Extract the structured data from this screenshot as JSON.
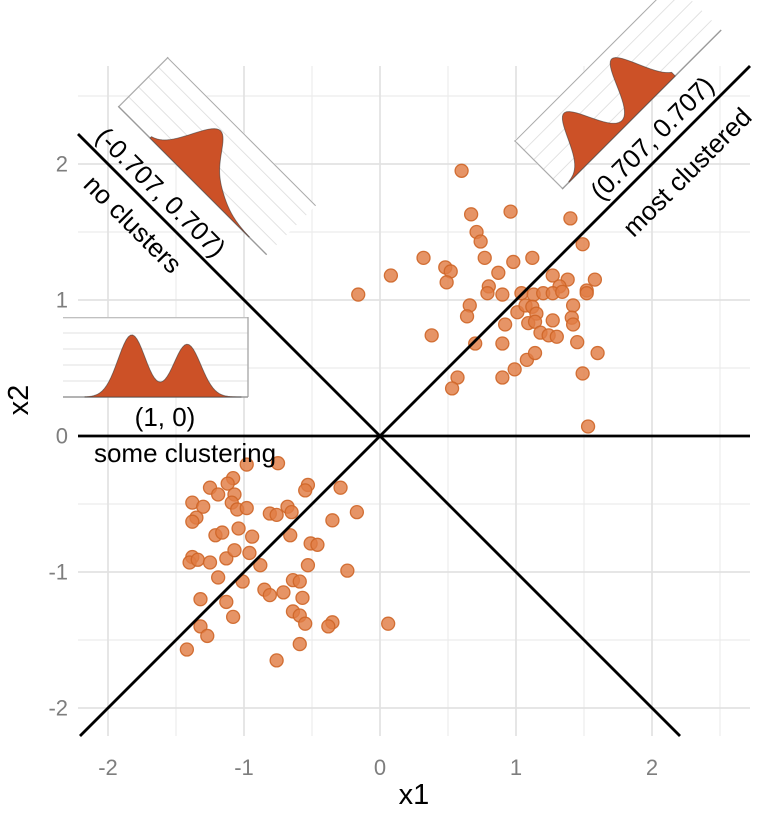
{
  "axes": {
    "x_label": "x1",
    "y_label": "x2"
  },
  "annotations": {
    "tl_coef": "(-0.707, 0.707)",
    "tl_desc": "no clusters",
    "tr_coef": "(0.707, 0.707)",
    "tr_desc": "most clustered",
    "ml_coef": "(1, 0)",
    "ml_desc": "some clustering"
  },
  "colors": {
    "point_fill": "#E07C44",
    "point_edge": "#CE6527",
    "density_fill": "#CC5127",
    "density_edge": "#3A3A3A",
    "ref_line": "#000000",
    "grid_major": "#E2E2E2",
    "grid_minor": "#ECECEC",
    "tick_text": "#7E7E7E",
    "inset_grid": "#E0E0E0",
    "inset_edge": "#ABABAB",
    "inset_baseline": "#9A9A9A"
  },
  "chart_data": {
    "type": "scatter",
    "xlabel": "x1",
    "ylabel": "x2",
    "x_ticks": [
      -2,
      -1,
      0,
      1,
      2
    ],
    "y_ticks": [
      -2,
      -1,
      0,
      1,
      2
    ],
    "minor_ticks": [
      -1.5,
      -0.5,
      0.5,
      1.5,
      2.5
    ],
    "xlim": [
      -2.22,
      2.72
    ],
    "ylim": [
      -2.21,
      2.72
    ],
    "grid": true,
    "reference_lines": [
      {
        "slope": 1,
        "intercept": 0
      },
      {
        "slope": -1,
        "intercept": 0
      },
      {
        "slope": 0,
        "intercept": 0
      }
    ],
    "series": [
      {
        "name": "cluster-upper-right",
        "values": [
          [
            0.6,
            1.95
          ],
          [
            0.67,
            1.63
          ],
          [
            0.96,
            1.65
          ],
          [
            0.71,
            1.5
          ],
          [
            0.74,
            1.43
          ],
          [
            1.4,
            1.6
          ],
          [
            1.49,
            1.41
          ],
          [
            0.32,
            1.31
          ],
          [
            0.08,
            1.18
          ],
          [
            -0.16,
            1.04
          ],
          [
            0.48,
            1.24
          ],
          [
            0.52,
            1.21
          ],
          [
            0.49,
            1.13
          ],
          [
            0.77,
            1.31
          ],
          [
            0.98,
            1.28
          ],
          [
            0.87,
            1.2
          ],
          [
            1.12,
            1.31
          ],
          [
            1.27,
            1.18
          ],
          [
            1.38,
            1.15
          ],
          [
            1.58,
            1.15
          ],
          [
            1.52,
            1.07
          ],
          [
            1.32,
            1.1
          ],
          [
            0.8,
            1.1
          ],
          [
            0.79,
            1.05
          ],
          [
            0.9,
            1.04
          ],
          [
            1.04,
            1.05
          ],
          [
            1.13,
            1.04
          ],
          [
            1.2,
            1.05
          ],
          [
            1.27,
            1.05
          ],
          [
            1.34,
            1.06
          ],
          [
            1.52,
            1.05
          ],
          [
            0.66,
            0.96
          ],
          [
            1.01,
            0.91
          ],
          [
            1.07,
            0.96
          ],
          [
            1.12,
            0.95
          ],
          [
            1.15,
            0.9
          ],
          [
            1.42,
            0.96
          ],
          [
            0.64,
            0.88
          ],
          [
            1.27,
            0.85
          ],
          [
            1.41,
            0.87
          ],
          [
            1.42,
            0.82
          ],
          [
            0.38,
            0.74
          ],
          [
            0.7,
            0.68
          ],
          [
            0.92,
            0.82
          ],
          [
            1.09,
            0.83
          ],
          [
            1.14,
            0.84
          ],
          [
            1.18,
            0.76
          ],
          [
            1.24,
            0.74
          ],
          [
            1.3,
            0.73
          ],
          [
            1.45,
            0.69
          ],
          [
            0.9,
            0.68
          ],
          [
            1.6,
            0.61
          ],
          [
            1.08,
            0.56
          ],
          [
            1.14,
            0.61
          ],
          [
            0.99,
            0.49
          ],
          [
            0.9,
            0.43
          ],
          [
            0.57,
            0.43
          ],
          [
            0.53,
            0.35
          ],
          [
            1.49,
            0.46
          ],
          [
            1.53,
            0.07
          ]
        ]
      },
      {
        "name": "cluster-lower-left",
        "values": [
          [
            -0.98,
            -0.21
          ],
          [
            -0.75,
            -0.2
          ],
          [
            -1.08,
            -0.31
          ],
          [
            -1.12,
            -0.35
          ],
          [
            -1.25,
            -0.38
          ],
          [
            -1.19,
            -0.43
          ],
          [
            -1.38,
            -0.49
          ],
          [
            -1.3,
            -0.52
          ],
          [
            -1.35,
            -0.6
          ],
          [
            -1.38,
            -0.63
          ],
          [
            -1.07,
            -0.43
          ],
          [
            -1.09,
            -0.49
          ],
          [
            -1.05,
            -0.54
          ],
          [
            -0.98,
            -0.53
          ],
          [
            -0.53,
            -0.36
          ],
          [
            -0.55,
            -0.4
          ],
          [
            -0.29,
            -0.38
          ],
          [
            -0.68,
            -0.52
          ],
          [
            -0.65,
            -0.56
          ],
          [
            -0.35,
            -0.62
          ],
          [
            -0.17,
            -0.56
          ],
          [
            -1.21,
            -0.73
          ],
          [
            -1.16,
            -0.71
          ],
          [
            -1.04,
            -0.68
          ],
          [
            -0.94,
            -0.74
          ],
          [
            -0.81,
            -0.57
          ],
          [
            -0.76,
            -0.58
          ],
          [
            -0.66,
            -0.73
          ],
          [
            -1.38,
            -0.89
          ],
          [
            -1.4,
            -0.93
          ],
          [
            -1.34,
            -0.91
          ],
          [
            -1.25,
            -0.93
          ],
          [
            -1.13,
            -0.9
          ],
          [
            -1.07,
            -0.84
          ],
          [
            -0.96,
            -0.86
          ],
          [
            -0.88,
            -0.95
          ],
          [
            -1.19,
            -1.04
          ],
          [
            -1.01,
            -1.07
          ],
          [
            -0.51,
            -0.79
          ],
          [
            -0.46,
            -0.8
          ],
          [
            -0.53,
            -0.95
          ],
          [
            -0.64,
            -1.06
          ],
          [
            -0.59,
            -1.07
          ],
          [
            -0.24,
            -0.99
          ],
          [
            -0.85,
            -1.13
          ],
          [
            -0.81,
            -1.17
          ],
          [
            -0.71,
            -1.15
          ],
          [
            -0.57,
            -1.19
          ],
          [
            -1.32,
            -1.2
          ],
          [
            -1.13,
            -1.22
          ],
          [
            -0.64,
            -1.29
          ],
          [
            -1.08,
            -1.33
          ],
          [
            -1.32,
            -1.4
          ],
          [
            -1.27,
            -1.47
          ],
          [
            -1.42,
            -1.57
          ],
          [
            -0.59,
            -1.32
          ],
          [
            -0.55,
            -1.38
          ],
          [
            -0.35,
            -1.37
          ],
          [
            -0.38,
            -1.4
          ],
          [
            -0.59,
            -1.53
          ],
          [
            -0.76,
            -1.65
          ],
          [
            0.06,
            -1.38
          ]
        ]
      }
    ],
    "insets": [
      {
        "id": "no-clusters",
        "projection": "(-0.707, 0.707)",
        "caption": "no clusters",
        "shape": "unimodal",
        "components": [
          [
            0.3,
            0.115,
            1.0
          ],
          [
            0.48,
            0.18,
            0.45
          ]
        ]
      },
      {
        "id": "most-clustered",
        "projection": "(0.707, 0.707)",
        "caption": "most clustered",
        "shape": "bimodal-deep-trough",
        "components": [
          [
            0.3,
            0.1,
            0.92
          ],
          [
            0.78,
            0.1,
            1.0
          ]
        ]
      },
      {
        "id": "some-clustering",
        "projection": "(1, 0)",
        "caption": "some clustering",
        "shape": "bimodal-shallow-trough",
        "components": [
          [
            0.3,
            0.088,
            1.0
          ],
          [
            0.655,
            0.088,
            0.85
          ]
        ]
      }
    ]
  }
}
